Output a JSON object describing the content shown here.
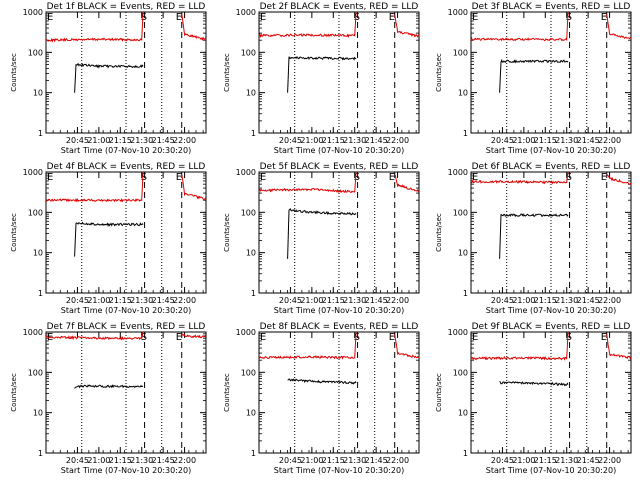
{
  "chart_data": {
    "type": "line",
    "grid": false,
    "y_scale": "log",
    "ylim": [
      1,
      1000
    ],
    "x_tick_labels": [
      "20:45",
      "21:00",
      "21:15",
      "21:30",
      "21:45",
      "22:00"
    ],
    "x_ticks_minutes": [
      -15,
      0,
      15,
      30,
      45,
      60
    ],
    "xlim_minutes": [
      -37,
      75
    ],
    "x_base_time": "21:00",
    "y_ticks": [
      1,
      10,
      100,
      1000
    ],
    "ylabel": "Counts/sec",
    "xlabel": "Start Time (07-Nov-10 20:30:20)",
    "colors": {
      "events": "#000000",
      "lld": "#e00000"
    },
    "markers": {
      "dotted_times_minutes": [
        -12,
        19,
        44
      ],
      "dashed_times_minutes": [
        32,
        58
      ],
      "letters": [
        "E",
        "S",
        "E"
      ]
    },
    "panels": [
      {
        "title": "Det 1f BLACK = Events, RED = LLD",
        "series": [
          {
            "name": "LLD",
            "segments": [
              {
                "x": [
                  -37,
                  0,
                  30,
                  31
                ],
                "y": [
                  200,
                  210,
                  205,
                  1000
                ]
              },
              {
                "x": [
                  58,
                  60,
                  75
                ],
                "y": [
                  900,
                  280,
                  210
                ]
              }
            ]
          },
          {
            "name": "Events",
            "segments": [
              {
                "x": [
                  -17,
                  -16,
                  0,
                  31
                ],
                "y": [
                  10,
                  50,
                  45,
                  45
                ]
              }
            ]
          }
        ]
      },
      {
        "title": "Det 2f BLACK = Events, RED = LLD",
        "series": [
          {
            "name": "LLD",
            "segments": [
              {
                "x": [
                  -37,
                  0,
                  30,
                  31
                ],
                "y": [
                  260,
                  270,
                  260,
                  1000
                ]
              },
              {
                "x": [
                  58,
                  60,
                  75
                ],
                "y": [
                  900,
                  320,
                  250
                ]
              }
            ]
          },
          {
            "name": "Events",
            "segments": [
              {
                "x": [
                  -17,
                  -16,
                  0,
                  31
                ],
                "y": [
                  10,
                  75,
                  72,
                  70
                ]
              }
            ]
          }
        ]
      },
      {
        "title": "Det 3f BLACK = Events, RED = LLD",
        "series": [
          {
            "name": "LLD",
            "segments": [
              {
                "x": [
                  -37,
                  0,
                  30,
                  31
                ],
                "y": [
                  210,
                  210,
                  205,
                  1000
                ]
              },
              {
                "x": [
                  58,
                  60,
                  75
                ],
                "y": [
                  900,
                  280,
                  220
                ]
              }
            ]
          },
          {
            "name": "Events",
            "segments": [
              {
                "x": [
                  -17,
                  -16,
                  0,
                  31
                ],
                "y": [
                  10,
                  60,
                  60,
                  60
                ]
              }
            ]
          }
        ]
      },
      {
        "title": "Det 4f BLACK = Events, RED = LLD",
        "series": [
          {
            "name": "LLD",
            "segments": [
              {
                "x": [
                  -37,
                  0,
                  30,
                  31
                ],
                "y": [
                  200,
                  200,
                  200,
                  1000
                ]
              },
              {
                "x": [
                  58,
                  60,
                  75
                ],
                "y": [
                  900,
                  290,
                  210
                ]
              }
            ]
          },
          {
            "name": "Events",
            "segments": [
              {
                "x": [
                  -17,
                  -16,
                  0,
                  31
                ],
                "y": [
                  8,
                  55,
                  50,
                  50
                ]
              }
            ]
          }
        ]
      },
      {
        "title": "Det 5f BLACK = Events, RED = LLD",
        "series": [
          {
            "name": "LLD",
            "segments": [
              {
                "x": [
                  -37,
                  0,
                  30,
                  31
                ],
                "y": [
                  350,
                  370,
                  320,
                  1000
                ]
              },
              {
                "x": [
                  58,
                  60,
                  75
                ],
                "y": [
                  900,
                  480,
                  330
                ]
              }
            ]
          },
          {
            "name": "Events",
            "segments": [
              {
                "x": [
                  -17,
                  -16,
                  0,
                  31
                ],
                "y": [
                  7,
                  115,
                  100,
                  90
                ]
              }
            ]
          }
        ]
      },
      {
        "title": "Det 6f BLACK = Events, RED = LLD",
        "series": [
          {
            "name": "LLD",
            "segments": [
              {
                "x": [
                  -37,
                  0,
                  30,
                  31
                ],
                "y": [
                  580,
                  570,
                  550,
                  1000
                ]
              },
              {
                "x": [
                  58,
                  60,
                  75
                ],
                "y": [
                  900,
                  700,
                  500
                ]
              }
            ]
          },
          {
            "name": "Events",
            "segments": [
              {
                "x": [
                  -17,
                  -16,
                  0,
                  31
                ],
                "y": [
                  7,
                  85,
                  85,
                  85
                ]
              }
            ]
          }
        ]
      },
      {
        "title": "Det 7f BLACK = Events, RED = LLD",
        "series": [
          {
            "name": "LLD",
            "segments": [
              {
                "x": [
                  -37,
                  0,
                  30,
                  31
                ],
                "y": [
                  750,
                  700,
                  700,
                  1000
                ]
              },
              {
                "x": [
                  58,
                  60,
                  75
                ],
                "y": [
                  950,
                  800,
                  750
                ]
              }
            ]
          },
          {
            "name": "Events",
            "segments": [
              {
                "x": [
                  -17,
                  -16,
                  0,
                  31
                ],
                "y": [
                  40,
                  45,
                  45,
                  45
                ]
              }
            ]
          }
        ]
      },
      {
        "title": "Det 8f BLACK = Events, RED = LLD",
        "series": [
          {
            "name": "LLD",
            "segments": [
              {
                "x": [
                  -37,
                  0,
                  30,
                  31
                ],
                "y": [
                  230,
                  240,
                  230,
                  1000
                ]
              },
              {
                "x": [
                  58,
                  60,
                  75
                ],
                "y": [
                  900,
                  300,
                  230
                ]
              }
            ]
          },
          {
            "name": "Events",
            "segments": [
              {
                "x": [
                  -17,
                  -16,
                  0,
                  31
                ],
                "y": [
                  65,
                  65,
                  60,
                  55
                ]
              }
            ]
          }
        ]
      },
      {
        "title": "Det 9f BLACK = Events, RED = LLD",
        "series": [
          {
            "name": "LLD",
            "segments": [
              {
                "x": [
                  -37,
                  0,
                  30,
                  31
                ],
                "y": [
                  220,
                  230,
                  220,
                  1000
                ]
              },
              {
                "x": [
                  58,
                  60,
                  75
                ],
                "y": [
                  900,
                  280,
                  230
                ]
              }
            ]
          },
          {
            "name": "Events",
            "segments": [
              {
                "x": [
                  -17,
                  -16,
                  0,
                  31
                ],
                "y": [
                  60,
                  55,
                  55,
                  50
                ]
              }
            ]
          }
        ]
      }
    ]
  }
}
